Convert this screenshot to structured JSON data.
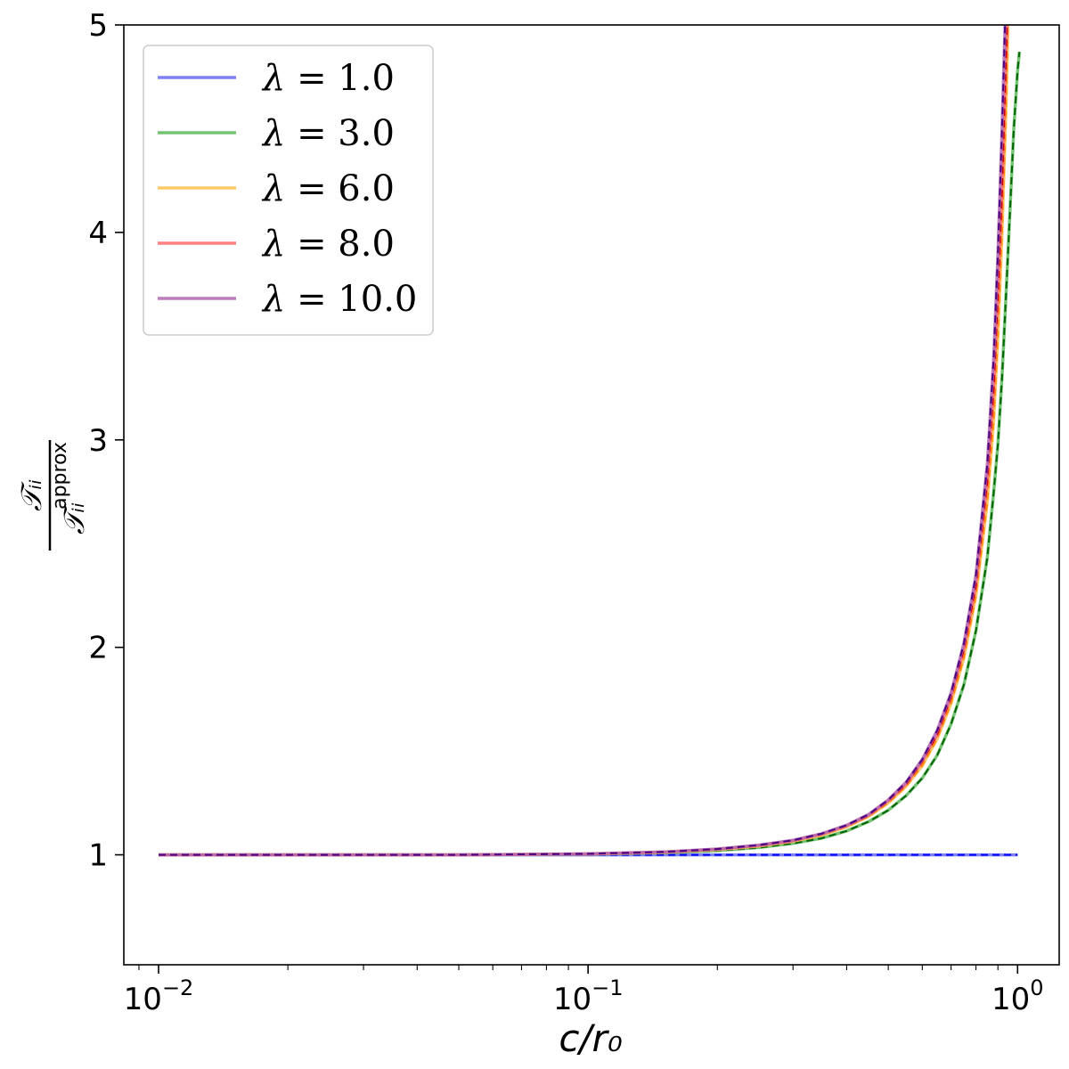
{
  "chart_data": {
    "type": "line",
    "xscale": "log",
    "xlim": [
      0.0083,
      1.25
    ],
    "ylim": [
      0.47,
      5.0
    ],
    "xlabel": "c/r₀",
    "ylabel": {
      "numerator": "𝒯ᵢᵢ",
      "denominator": "𝒯ᵢᵢ",
      "superscript": "approx"
    },
    "x_major_ticks": [
      {
        "value": 0.01,
        "base": "10",
        "exp": "−2"
      },
      {
        "value": 0.1,
        "base": "10",
        "exp": "−1"
      },
      {
        "value": 1.0,
        "base": "10",
        "exp": "0"
      }
    ],
    "y_ticks": [
      {
        "value": 1,
        "label": "1"
      },
      {
        "value": 2,
        "label": "2"
      },
      {
        "value": 3,
        "label": "3"
      },
      {
        "value": 4,
        "label": "4"
      },
      {
        "value": 5,
        "label": "5"
      }
    ],
    "legend_position": "top-left",
    "grid": false,
    "series": [
      {
        "name": "λ = 1.0",
        "symbol": "λ",
        "eq": " = 1.0",
        "color": "#6b6bf5",
        "dash_color": "#0000ff",
        "x": [
          0.01,
          0.1,
          0.2,
          0.5,
          1.0
        ],
        "y": [
          1.0,
          1.0,
          1.0,
          1.0,
          1.0
        ]
      },
      {
        "name": "λ = 3.0",
        "symbol": "λ",
        "eq": " = 3.0",
        "color": "#5cb85c",
        "dash_color": "#006400",
        "x": [
          0.01,
          0.05,
          0.1,
          0.15,
          0.2,
          0.25,
          0.3,
          0.35,
          0.4,
          0.45,
          0.5,
          0.55,
          0.6,
          0.65,
          0.7,
          0.75,
          0.8,
          0.85,
          0.88,
          0.9,
          0.92,
          0.94,
          0.96,
          0.98,
          1.0,
          1.01
        ],
        "y": [
          1.0,
          1.0,
          1.003,
          1.01,
          1.02,
          1.035,
          1.055,
          1.08,
          1.115,
          1.16,
          1.215,
          1.285,
          1.37,
          1.48,
          1.63,
          1.82,
          2.08,
          2.43,
          2.75,
          2.98,
          3.3,
          3.7,
          4.1,
          4.5,
          4.78,
          4.87
        ]
      },
      {
        "name": "λ = 6.0",
        "symbol": "λ",
        "eq": " = 6.0",
        "color": "#ffc04d",
        "dash_color": "#ff8c00",
        "x": [
          0.01,
          0.05,
          0.1,
          0.15,
          0.2,
          0.25,
          0.3,
          0.35,
          0.4,
          0.45,
          0.5,
          0.55,
          0.6,
          0.65,
          0.7,
          0.75,
          0.8,
          0.85,
          0.88,
          0.9,
          0.92,
          0.94,
          0.95
        ],
        "y": [
          1.0,
          1.0,
          1.004,
          1.012,
          1.025,
          1.042,
          1.065,
          1.095,
          1.135,
          1.185,
          1.25,
          1.33,
          1.43,
          1.56,
          1.73,
          1.95,
          2.25,
          2.7,
          3.1,
          3.5,
          4.0,
          4.6,
          5.0
        ]
      },
      {
        "name": "λ = 8.0",
        "symbol": "λ",
        "eq": " = 8.0",
        "color": "#ff6b6b",
        "dash_color": "#cc0000",
        "x": [
          0.01,
          0.05,
          0.1,
          0.15,
          0.2,
          0.25,
          0.3,
          0.35,
          0.4,
          0.45,
          0.5,
          0.55,
          0.6,
          0.65,
          0.7,
          0.75,
          0.8,
          0.85,
          0.88,
          0.9,
          0.92,
          0.94,
          0.945
        ],
        "y": [
          1.0,
          1.0,
          1.004,
          1.013,
          1.027,
          1.045,
          1.068,
          1.1,
          1.14,
          1.19,
          1.26,
          1.34,
          1.45,
          1.58,
          1.76,
          1.99,
          2.3,
          2.8,
          3.25,
          3.7,
          4.2,
          4.85,
          5.0
        ]
      },
      {
        "name": "λ = 10.0",
        "symbol": "λ",
        "eq": " = 10.0",
        "color": "#b266b2",
        "dash_color": "#4b0082",
        "x": [
          0.01,
          0.05,
          0.1,
          0.15,
          0.2,
          0.25,
          0.3,
          0.35,
          0.4,
          0.45,
          0.5,
          0.55,
          0.6,
          0.65,
          0.7,
          0.75,
          0.8,
          0.85,
          0.88,
          0.9,
          0.92,
          0.935
        ],
        "y": [
          1.0,
          1.0,
          1.005,
          1.014,
          1.028,
          1.047,
          1.07,
          1.102,
          1.143,
          1.195,
          1.265,
          1.35,
          1.46,
          1.6,
          1.78,
          2.02,
          2.35,
          2.88,
          3.4,
          3.9,
          4.5,
          5.0
        ]
      }
    ]
  }
}
